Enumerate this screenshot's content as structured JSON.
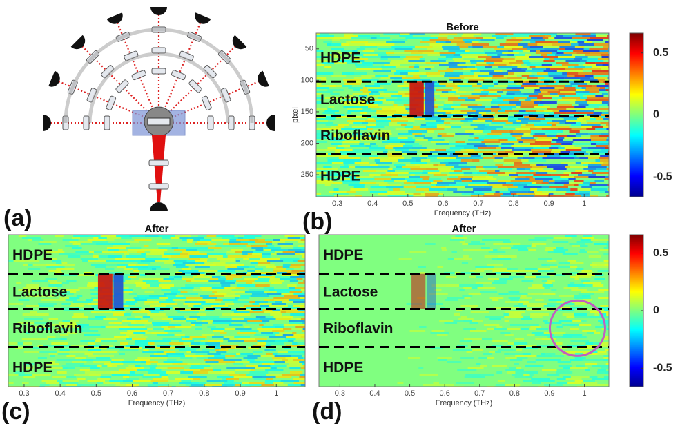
{
  "diagram": {
    "label": "(a)"
  },
  "heatmaps": [
    {
      "label": "(b)",
      "title": "Before",
      "xlabel": "Frequency (THz)",
      "ylabel": "pixel",
      "xlim": [
        0.24,
        1.07
      ],
      "xticks": [
        0.3,
        0.4,
        0.5,
        0.6,
        0.7,
        0.8,
        0.9,
        1
      ],
      "ylim": [
        25,
        285
      ],
      "yticks": [
        50,
        100,
        150,
        200,
        250
      ],
      "regions": [
        "HDPE",
        "Lactose",
        "Riboflavin",
        "HDPE"
      ],
      "boundaries": [
        102,
        157,
        217
      ]
    },
    {
      "label": "(c)",
      "title": "After",
      "xlabel": "Frequency (THz)",
      "xlim": [
        0.256,
        1.08
      ],
      "xticks": [
        0.3,
        0.4,
        0.5,
        0.6,
        0.7,
        0.8,
        0.9,
        1
      ],
      "ylim": [
        25,
        285
      ],
      "regions": [
        "HDPE",
        "Lactose",
        "Riboflavin",
        "HDPE"
      ],
      "boundaries": [
        92,
        152,
        217
      ]
    },
    {
      "label": "(d)",
      "title": "After",
      "xlabel": "Frequency (THz)",
      "xlim": [
        0.24,
        1.07
      ],
      "xticks": [
        0.3,
        0.4,
        0.5,
        0.6,
        0.7,
        0.8,
        0.9,
        1
      ],
      "ylim": [
        25,
        285
      ],
      "regions": [
        "HDPE",
        "Lactose",
        "Riboflavin",
        "HDPE"
      ],
      "boundaries": [
        92,
        152,
        217
      ]
    }
  ],
  "colorbars": [
    {
      "clim": [
        -0.66,
        0.66
      ],
      "ticks": [
        0.5,
        0,
        -0.5
      ]
    },
    {
      "clim": [
        -0.66,
        0.66
      ],
      "ticks": [
        0.5,
        0,
        -0.5
      ]
    }
  ]
}
